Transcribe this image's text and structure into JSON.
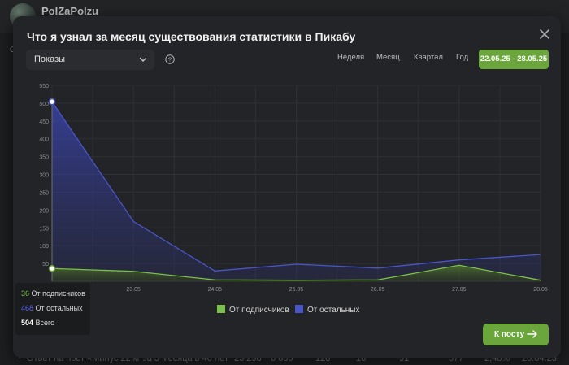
{
  "background": {
    "username": "PolZaPolzu",
    "left_mark": "О",
    "row": {
      "title": "Ответ на пост «Минус 22 кг за 3 месяца в 40 лет",
      "values": [
        "23 298",
        "6 686",
        "128",
        "16",
        "91",
        "577",
        "2,48%",
        "20.04.25"
      ]
    }
  },
  "modal": {
    "title": "Что я узнал за месяц существования статистики в Пикабу",
    "metric_select": "Показы",
    "periods": [
      "Неделя",
      "Месяц",
      "Квартал",
      "Год"
    ],
    "date_range": "22.05.25 - 28.05.25",
    "cta_label": "К посту"
  },
  "colors": {
    "accent": "#6aa63c",
    "subscribers": "#7cbf4a",
    "others": "#4a55c9"
  },
  "tooltip": {
    "subs_value": "36",
    "subs_label": "От подписчиков",
    "others_value": "468",
    "others_label": "От остальных",
    "total_value": "504",
    "total_label": "Всего"
  },
  "legend": {
    "subscribers": "От подписчиков",
    "others": "От остальных"
  },
  "chart_data": {
    "type": "area",
    "categories": [
      "22.05",
      "23.05",
      "24.05",
      "25.05",
      "26.05",
      "27.05",
      "28.05"
    ],
    "y_ticks": [
      50,
      100,
      150,
      200,
      250,
      300,
      350,
      400,
      450,
      500,
      550
    ],
    "ylim": [
      0,
      550
    ],
    "stacked": true,
    "grid": true,
    "legend_position": "bottom",
    "series": [
      {
        "name": "От подписчиков",
        "values": [
          36,
          28,
          4,
          3,
          4,
          45,
          3
        ]
      },
      {
        "name": "От остальных",
        "values": [
          468,
          140,
          25,
          45,
          33,
          15,
          72
        ]
      }
    ],
    "totals": [
      504,
      168,
      29,
      48,
      37,
      60,
      75
    ]
  }
}
